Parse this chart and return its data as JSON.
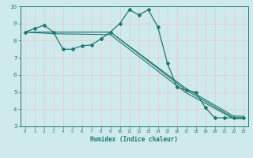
{
  "xlabel": "Humidex (Indice chaleur)",
  "background_color": "#ceeaec",
  "grid_color": "#b8d8da",
  "line_color": "#1e7870",
  "xlim": [
    -0.5,
    23.5
  ],
  "ylim": [
    3,
    10
  ],
  "yticks": [
    3,
    4,
    5,
    6,
    7,
    8,
    9,
    10
  ],
  "xticks": [
    0,
    1,
    2,
    3,
    4,
    5,
    6,
    7,
    8,
    9,
    10,
    11,
    12,
    13,
    14,
    15,
    16,
    17,
    18,
    19,
    20,
    21,
    22,
    23
  ],
  "series1_x": [
    0,
    1,
    2,
    3,
    4,
    5,
    6,
    7,
    8,
    9,
    10,
    11,
    12,
    13,
    14,
    15,
    16,
    17,
    18,
    19,
    20,
    21,
    22,
    23
  ],
  "series1_y": [
    8.5,
    8.7,
    8.9,
    8.5,
    7.5,
    7.5,
    7.7,
    7.75,
    8.1,
    8.5,
    9.0,
    9.8,
    9.5,
    9.8,
    8.8,
    6.7,
    5.3,
    5.1,
    5.0,
    4.1,
    3.5,
    3.5,
    3.5,
    3.5
  ],
  "series2_x": [
    0,
    3,
    9,
    17,
    22,
    23
  ],
  "series2_y": [
    8.5,
    8.5,
    8.5,
    5.1,
    3.5,
    3.5
  ],
  "series3_x": [
    0,
    3,
    9,
    17,
    22,
    23
  ],
  "series3_y": [
    8.5,
    8.5,
    8.5,
    5.2,
    3.6,
    3.6
  ],
  "series4_x": [
    0,
    3,
    9,
    17,
    22,
    23
  ],
  "series4_y": [
    8.5,
    8.4,
    8.35,
    4.95,
    3.45,
    3.45
  ]
}
